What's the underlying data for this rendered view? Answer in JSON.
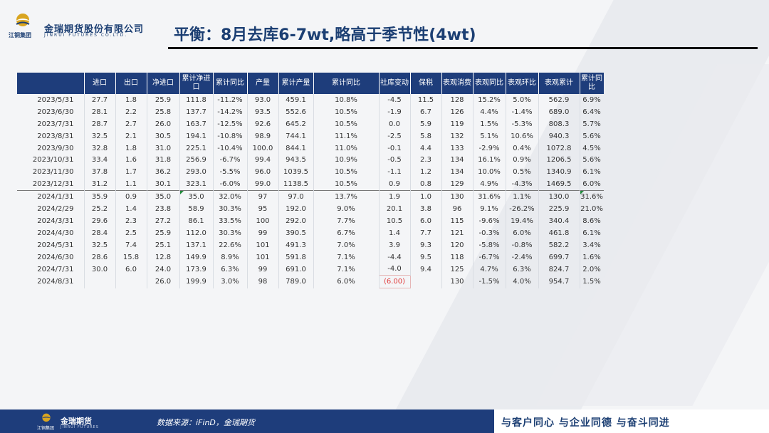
{
  "header": {
    "logo_cn": "金瑞期货股份有限公司",
    "logo_en": "JINRUI FUTURES CO.LTD.",
    "logo_small": "江铜集团",
    "title": "平衡：8月去库6-7wt,略高于季节性(4wt)"
  },
  "table": {
    "columns": [
      "",
      "进口",
      "出口",
      "净进口",
      "累计净进口",
      "累计同比",
      "产量",
      "累计产量",
      "累计同比",
      "社库变动",
      "保税",
      "表观消费",
      "表观同比",
      "表观环比",
      "表观累计",
      "累计同比"
    ],
    "rows": [
      [
        "2023/5/31",
        "27.7",
        "1.8",
        "25.9",
        "111.8",
        "-11.2%",
        "93.0",
        "459.1",
        "10.8%",
        "-4.5",
        "11.5",
        "128",
        "15.2%",
        "5.0%",
        "562.9",
        "6.9%"
      ],
      [
        "2023/6/30",
        "28.1",
        "2.2",
        "25.8",
        "137.7",
        "-14.2%",
        "93.5",
        "552.6",
        "10.5%",
        "-1.9",
        "6.7",
        "126",
        "4.4%",
        "-1.4%",
        "689.0",
        "6.4%"
      ],
      [
        "2023/7/31",
        "28.7",
        "2.7",
        "26.0",
        "163.7",
        "-12.5%",
        "92.6",
        "645.2",
        "10.5%",
        "0.0",
        "5.9",
        "119",
        "1.5%",
        "-5.3%",
        "808.3",
        "5.7%"
      ],
      [
        "2023/8/31",
        "32.5",
        "2.1",
        "30.5",
        "194.1",
        "-10.8%",
        "98.9",
        "744.1",
        "11.1%",
        "-2.5",
        "5.8",
        "132",
        "5.1%",
        "10.6%",
        "940.3",
        "5.6%"
      ],
      [
        "2023/9/30",
        "32.8",
        "1.8",
        "31.0",
        "225.1",
        "-10.4%",
        "100.0",
        "844.1",
        "11.0%",
        "-0.1",
        "4.4",
        "133",
        "-2.9%",
        "0.4%",
        "1072.8",
        "4.5%"
      ],
      [
        "2023/10/31",
        "33.4",
        "1.6",
        "31.8",
        "256.9",
        "-6.7%",
        "99.4",
        "943.5",
        "10.9%",
        "-0.5",
        "2.3",
        "134",
        "16.1%",
        "0.9%",
        "1206.5",
        "5.6%"
      ],
      [
        "2023/11/30",
        "37.8",
        "1.7",
        "36.2",
        "293.0",
        "-5.5%",
        "96.0",
        "1039.5",
        "10.5%",
        "-1.1",
        "1.2",
        "134",
        "10.0%",
        "0.5%",
        "1340.9",
        "6.1%"
      ],
      [
        "2023/12/31",
        "31.2",
        "1.1",
        "30.1",
        "323.1",
        "-6.0%",
        "99.0",
        "1138.5",
        "10.5%",
        "0.9",
        "0.8",
        "129",
        "4.9%",
        "-4.3%",
        "1469.5",
        "6.0%"
      ],
      [
        "2024/1/31",
        "35.9",
        "0.9",
        "35.0",
        "35.0",
        "32.0%",
        "97",
        "97.0",
        "13.7%",
        "1.9",
        "1.0",
        "130",
        "31.6%",
        "1.1%",
        "130.0",
        "31.6%"
      ],
      [
        "2024/2/29",
        "25.2",
        "1.4",
        "23.8",
        "58.9",
        "30.3%",
        "95",
        "192.0",
        "9.0%",
        "20.1",
        "3.8",
        "96",
        "9.1%",
        "-26.2%",
        "225.9",
        "21.0%"
      ],
      [
        "2024/3/31",
        "29.6",
        "2.3",
        "27.2",
        "86.1",
        "33.5%",
        "100",
        "292.0",
        "7.7%",
        "10.5",
        "6.0",
        "115",
        "-9.6%",
        "19.4%",
        "340.4",
        "8.6%"
      ],
      [
        "2024/4/30",
        "28.4",
        "2.5",
        "25.9",
        "112.0",
        "30.3%",
        "99",
        "390.5",
        "6.7%",
        "1.4",
        "7.7",
        "121",
        "-0.3%",
        "6.0%",
        "461.8",
        "6.1%"
      ],
      [
        "2024/5/31",
        "32.5",
        "7.4",
        "25.1",
        "137.1",
        "22.6%",
        "101",
        "491.3",
        "7.0%",
        "3.9",
        "9.3",
        "120",
        "-5.8%",
        "-0.8%",
        "582.2",
        "3.4%"
      ],
      [
        "2024/6/30",
        "28.6",
        "15.8",
        "12.8",
        "149.9",
        "8.9%",
        "101",
        "591.8",
        "7.1%",
        "-4.4",
        "9.5",
        "118",
        "-6.7%",
        "-2.4%",
        "699.7",
        "1.6%"
      ],
      [
        "2024/7/31",
        "30.0",
        "6.0",
        "24.0",
        "173.9",
        "6.3%",
        "99",
        "691.0",
        "7.1%",
        "-4.0",
        "9.4",
        "125",
        "4.7%",
        "6.3%",
        "824.7",
        "2.0%"
      ],
      [
        "2024/8/31",
        "",
        "",
        "26.0",
        "199.9",
        "3.0%",
        "98",
        "789.0",
        "6.0%",
        "(6.00)",
        "",
        "130",
        "-1.5%",
        "4.0%",
        "954.7",
        "1.5%"
      ]
    ]
  },
  "footer": {
    "logo_cn": "金瑞期货",
    "logo_en": "JINRUI FUTURES",
    "logo_small": "江铜集团",
    "source": "数据来源：iFinD，金瑞期货",
    "slogan": "与客户同心 与企业同德 与奋斗同进"
  }
}
